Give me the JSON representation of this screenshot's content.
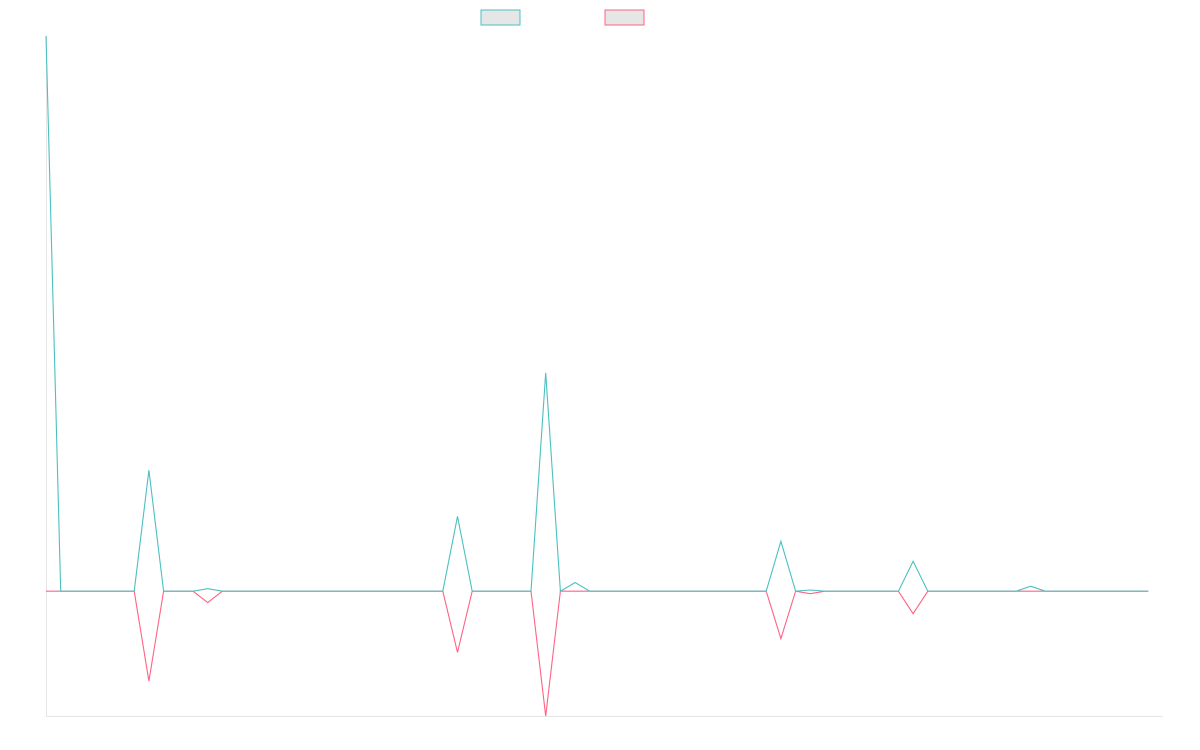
{
  "chart_data": {
    "type": "line",
    "title": "",
    "xlabel": "",
    "ylabel": "",
    "x_count": 76,
    "ylim": [
      -100,
      445
    ],
    "grid": false,
    "legend": {
      "placement": "top-center"
    },
    "colors": {
      "series_up": "#4bc0c0",
      "series_down": "#ff6384",
      "legend_fill": "#e6e6e6",
      "axis": "#e6e6e6"
    },
    "series": [
      {
        "name": "",
        "color": "#4bc0c0",
        "points": [
          {
            "x": 0,
            "y": 445
          },
          {
            "x": 1,
            "y": 0
          },
          {
            "x": 6,
            "y": 0
          },
          {
            "x": 7,
            "y": 97
          },
          {
            "x": 8,
            "y": 0
          },
          {
            "x": 10,
            "y": 0
          },
          {
            "x": 11,
            "y": 2
          },
          {
            "x": 12,
            "y": 0
          },
          {
            "x": 27,
            "y": 0
          },
          {
            "x": 28,
            "y": 60
          },
          {
            "x": 29,
            "y": 0
          },
          {
            "x": 33,
            "y": 0
          },
          {
            "x": 34,
            "y": 175
          },
          {
            "x": 35,
            "y": 0
          },
          {
            "x": 35,
            "y": 0
          },
          {
            "x": 36,
            "y": 7
          },
          {
            "x": 37,
            "y": 0
          },
          {
            "x": 49,
            "y": 0
          },
          {
            "x": 50,
            "y": 40
          },
          {
            "x": 51,
            "y": 0
          },
          {
            "x": 51,
            "y": 0
          },
          {
            "x": 52,
            "y": 1
          },
          {
            "x": 53,
            "y": 0
          },
          {
            "x": 58,
            "y": 0
          },
          {
            "x": 59,
            "y": 24
          },
          {
            "x": 60,
            "y": 0
          },
          {
            "x": 66,
            "y": 0
          },
          {
            "x": 67,
            "y": 4
          },
          {
            "x": 68,
            "y": 0
          },
          {
            "x": 75,
            "y": 0
          }
        ]
      },
      {
        "name": "",
        "color": "#ff6384",
        "points": [
          {
            "x": 0,
            "y": 0
          },
          {
            "x": 6,
            "y": 0
          },
          {
            "x": 7,
            "y": -72
          },
          {
            "x": 8,
            "y": 0
          },
          {
            "x": 10,
            "y": 0
          },
          {
            "x": 11,
            "y": -9
          },
          {
            "x": 12,
            "y": 0
          },
          {
            "x": 27,
            "y": 0
          },
          {
            "x": 28,
            "y": -49
          },
          {
            "x": 29,
            "y": 0
          },
          {
            "x": 33,
            "y": 0
          },
          {
            "x": 34,
            "y": -100
          },
          {
            "x": 35,
            "y": 0
          },
          {
            "x": 49,
            "y": 0
          },
          {
            "x": 50,
            "y": -38
          },
          {
            "x": 51,
            "y": 0
          },
          {
            "x": 51,
            "y": 0
          },
          {
            "x": 52,
            "y": -2
          },
          {
            "x": 53,
            "y": 0
          },
          {
            "x": 58,
            "y": 0
          },
          {
            "x": 59,
            "y": -18
          },
          {
            "x": 60,
            "y": 0
          },
          {
            "x": 75,
            "y": 0
          }
        ]
      }
    ]
  }
}
